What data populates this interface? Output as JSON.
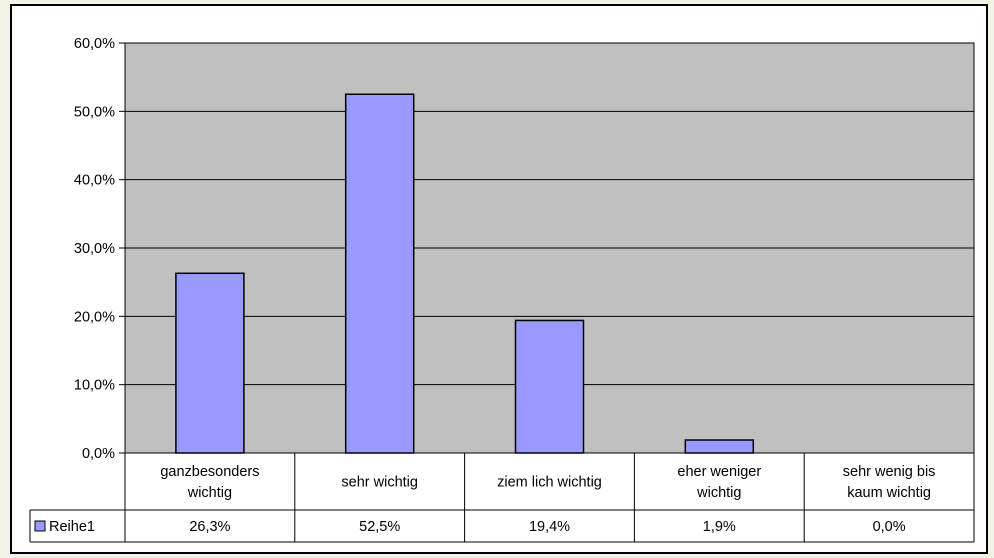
{
  "chart_data": {
    "type": "bar",
    "categories": [
      [
        "ganzbesonders",
        "wichtig"
      ],
      [
        "sehr wichtig"
      ],
      [
        "ziem lich wichtig"
      ],
      [
        "eher weniger",
        "wichtig"
      ],
      [
        "sehr wenig bis",
        "kaum  wichtig"
      ]
    ],
    "series": [
      {
        "name": "Reihe1",
        "values": [
          26.3,
          52.5,
          19.4,
          1.9,
          0.0
        ],
        "labels": [
          "26,3%",
          "52,5%",
          "19,4%",
          "1,9%",
          "0,0%"
        ]
      }
    ],
    "ylim": [
      0,
      60
    ],
    "yticks": [
      "0,0%",
      "10,0%",
      "20,0%",
      "30,0%",
      "40,0%",
      "50,0%",
      "60,0%"
    ],
    "grid": true,
    "legend": "data-table-left",
    "colors": {
      "plot_background": "#c0c0c0",
      "bar_fill": "#9999ff",
      "bar_stroke": "#000000",
      "page_background": "#f3f2e6"
    }
  }
}
